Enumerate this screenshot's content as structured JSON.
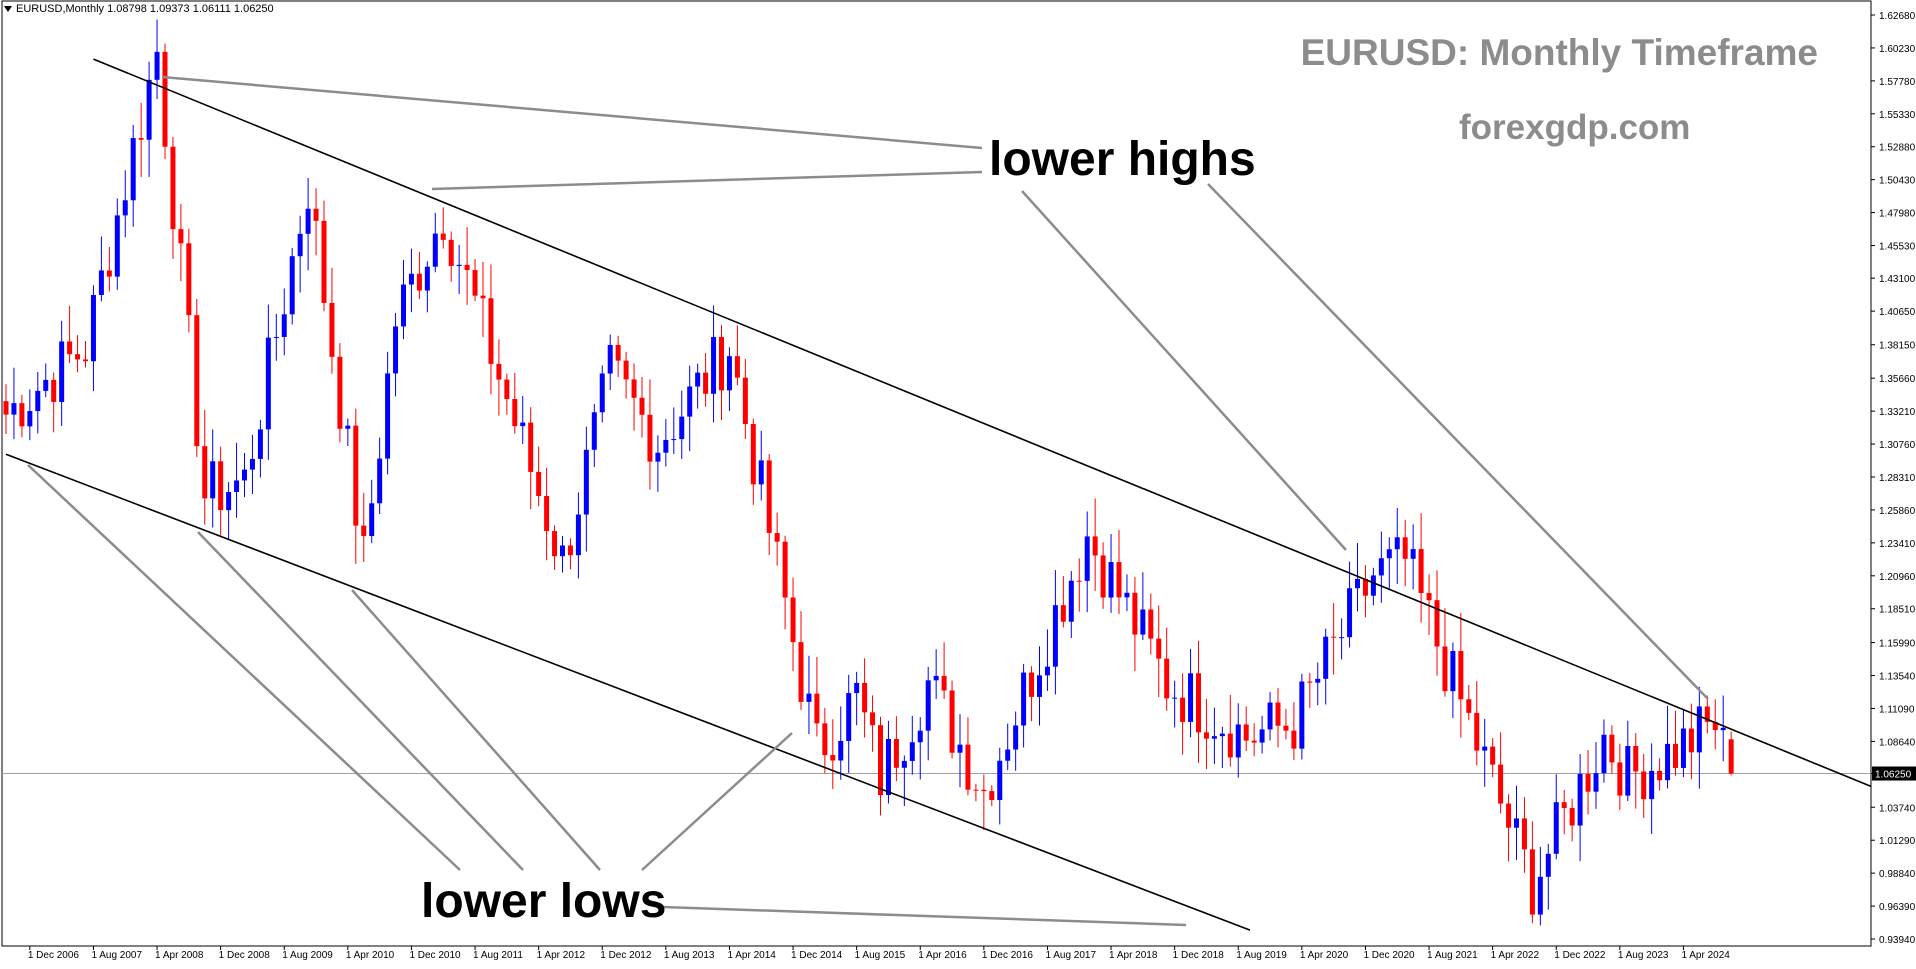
{
  "header": {
    "symbol_line": "EURUSD,Monthly  1.08798 1.09373 1.06111 1.06250"
  },
  "chart_title": "EURUSD: Monthly Timeframe",
  "website": "forexgdp.com",
  "annotations": {
    "highs": "lower highs",
    "lows": "lower lows"
  },
  "colors": {
    "bull": "#0000ff",
    "bear": "#ff0000",
    "channel": "#000000",
    "pointer": "#8c8c8c",
    "last_price_line": "#a0a0a0"
  },
  "chart_data": {
    "type": "candlestick",
    "symbol": "EURUSD",
    "timeframe": "Monthly",
    "last_bar": {
      "open": 1.08798,
      "high": 1.09373,
      "low": 1.06111,
      "close": 1.0625
    },
    "current_price_label": "1.06250",
    "y_axis": {
      "ylim": [
        0.9394,
        1.6268
      ],
      "ticks": [
        1.6268,
        1.6023,
        1.5778,
        1.5533,
        1.5288,
        1.5043,
        1.4798,
        1.4553,
        1.431,
        1.4065,
        1.3815,
        1.3566,
        1.3321,
        1.3076,
        1.2831,
        1.2586,
        1.2341,
        1.2096,
        1.1851,
        1.1599,
        1.1354,
        1.1109,
        1.0864,
        1.0625,
        1.0374,
        1.0129,
        0.9884,
        0.9639,
        0.9394
      ],
      "tick_labels": [
        "1.62680",
        "1.60230",
        "1.57780",
        "1.55330",
        "1.52880",
        "1.50430",
        "1.47980",
        "1.45530",
        "1.43100",
        "1.40650",
        "1.38150",
        "1.35660",
        "1.33210",
        "1.30760",
        "1.28310",
        "1.25860",
        "1.23410",
        "1.20960",
        "1.18510",
        "1.15990",
        "1.13540",
        "1.11090",
        "1.08640",
        "1.06250",
        "1.03740",
        "1.01290",
        "0.98840",
        "0.96390",
        "0.93940"
      ]
    },
    "x_axis": {
      "labels": [
        "1 Dec 2006",
        "1 Aug 2007",
        "1 Apr 2008",
        "1 Dec 2008",
        "1 Aug 2009",
        "1 Apr 2010",
        "1 Dec 2010",
        "1 Aug 2011",
        "1 Apr 2012",
        "1 Dec 2012",
        "1 Aug 2013",
        "1 Apr 2014",
        "1 Dec 2014",
        "1 Aug 2015",
        "1 Apr 2016",
        "1 Dec 2016",
        "1 Aug 2017",
        "1 Apr 2018",
        "1 Dec 2018",
        "1 Aug 2019",
        "1 Apr 2020",
        "1 Dec 2020",
        "1 Aug 2021",
        "1 Apr 2022",
        "1 Dec 2022",
        "1 Aug 2023",
        "1 Apr 2024"
      ]
    },
    "channel": {
      "upper": {
        "from": [
          "2007-08",
          1.594
        ],
        "to": [
          "2024-04",
          1.11
        ]
      },
      "lower": {
        "from": [
          "2006-09",
          1.3
        ],
        "to": [
          "2020-01",
          0.938
        ]
      }
    },
    "key_prices": [
      {
        "month": "2006-09",
        "price": 1.33
      },
      {
        "month": "2007-07",
        "price": 1.38
      },
      {
        "month": "2008-04",
        "price": 1.6
      },
      {
        "month": "2008-10",
        "price": 1.27
      },
      {
        "month": "2009-03",
        "price": 1.28
      },
      {
        "month": "2009-11",
        "price": 1.5
      },
      {
        "month": "2010-06",
        "price": 1.22
      },
      {
        "month": "2010-10",
        "price": 1.4
      },
      {
        "month": "2011-04",
        "price": 1.48
      },
      {
        "month": "2012-07",
        "price": 1.22
      },
      {
        "month": "2013-01",
        "price": 1.36
      },
      {
        "month": "2013-07",
        "price": 1.31
      },
      {
        "month": "2014-04",
        "price": 1.38
      },
      {
        "month": "2015-03",
        "price": 1.08
      },
      {
        "month": "2015-08",
        "price": 1.12
      },
      {
        "month": "2015-11",
        "price": 1.06
      },
      {
        "month": "2016-05",
        "price": 1.13
      },
      {
        "month": "2016-12",
        "price": 1.05
      },
      {
        "month": "2018-01",
        "price": 1.24
      },
      {
        "month": "2018-11",
        "price": 1.13
      },
      {
        "month": "2019-09",
        "price": 1.09
      },
      {
        "month": "2020-03",
        "price": 1.1
      },
      {
        "month": "2021-01",
        "price": 1.21
      },
      {
        "month": "2021-05",
        "price": 1.22
      },
      {
        "month": "2022-09",
        "price": 0.98
      },
      {
        "month": "2023-06",
        "price": 1.09
      },
      {
        "month": "2023-09",
        "price": 1.06
      },
      {
        "month": "2024-03",
        "price": 1.08
      },
      {
        "month": "2024-08",
        "price": 1.1
      },
      {
        "month": "2024-10",
        "price": 1.06
      }
    ]
  }
}
